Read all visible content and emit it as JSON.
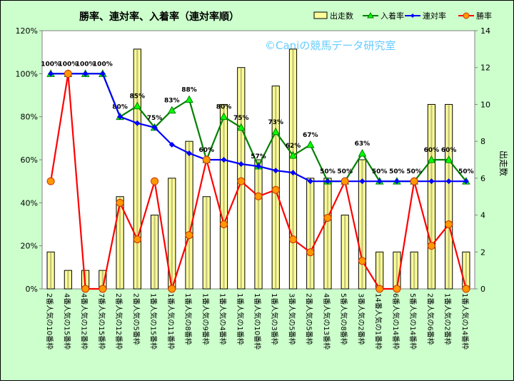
{
  "chart_data": {
    "type": "bar+line",
    "title": "勝率、連対率、入着率（連対率順）",
    "watermark": "©Caniの競馬データ研究室",
    "y2label": "出走数",
    "ylim": [
      0,
      120
    ],
    "y2lim": [
      0,
      14
    ],
    "yticks": [
      "0%",
      "20%",
      "40%",
      "60%",
      "80%",
      "100%",
      "120%"
    ],
    "y2ticks": [
      "0",
      "2",
      "4",
      "6",
      "8",
      "10",
      "12",
      "14"
    ],
    "grid": false,
    "legend": "top",
    "categories": [
      "2番人気の10番枠",
      "4番人気の15番枠",
      "4番人気の12番枠",
      "7番人気の15番枠",
      "2番人気の12番枠",
      "2番人気の5番枠",
      "1番人気の15番枠",
      "1番人気の11番枠",
      "1番人気の8番枠",
      "1番人気の9番枠",
      "1番人気の4番枠",
      "1番人気の1番枠",
      "1番人気の10番枠",
      "1番人気の3番枠",
      "3番人気の5番枠",
      "2番人気の5番枠",
      "4番人気の13番枠",
      "5番人気の8番枠",
      "3番人気の2番枠",
      "14番人気の1番枠",
      "6番人気の14番枠",
      "5番人気の14番枠",
      "2番人気の6番枠",
      "1番人気の2番枠",
      "1番人気の14番枠"
    ],
    "series": [
      {
        "name": "出走数",
        "kind": "bar",
        "axis": "right",
        "color": "#ffff99",
        "values": [
          2,
          1,
          1,
          1,
          5,
          13,
          4,
          6,
          8,
          5,
          10,
          12,
          7,
          11,
          13,
          6,
          6,
          4,
          7,
          2,
          2,
          2,
          10,
          10,
          2
        ]
      },
      {
        "name": "入着率",
        "kind": "line",
        "color": "#008000",
        "values": [
          100,
          100,
          100,
          100,
          80,
          85,
          75,
          83,
          88,
          60,
          80,
          75,
          57,
          73,
          62,
          67,
          50,
          50,
          63,
          50,
          50,
          50,
          60,
          60,
          50
        ],
        "labels": [
          "100%",
          "100%",
          "100%",
          "100%",
          "80%",
          "85%",
          "75%",
          "83%",
          "88%",
          "60%",
          "80%",
          "75%",
          "57%",
          "73%",
          "62%",
          "67%",
          "50%",
          "50%",
          "63%",
          "50%",
          "50%",
          "50%",
          "60%",
          "60%",
          "50%"
        ]
      },
      {
        "name": "連対率",
        "kind": "line",
        "color": "#0000ff",
        "values": [
          100,
          100,
          100,
          100,
          80,
          77,
          75,
          67,
          63,
          60,
          60,
          58,
          57,
          55,
          54,
          50,
          50,
          50,
          50,
          50,
          50,
          50,
          50,
          50,
          50
        ]
      },
      {
        "name": "勝率",
        "kind": "line",
        "color": "#ff0000",
        "values": [
          50,
          100,
          0,
          0,
          40,
          23,
          50,
          0,
          25,
          60,
          30,
          50,
          43,
          46,
          23,
          17,
          33,
          50,
          13,
          0,
          0,
          50,
          20,
          30,
          0
        ]
      }
    ]
  }
}
